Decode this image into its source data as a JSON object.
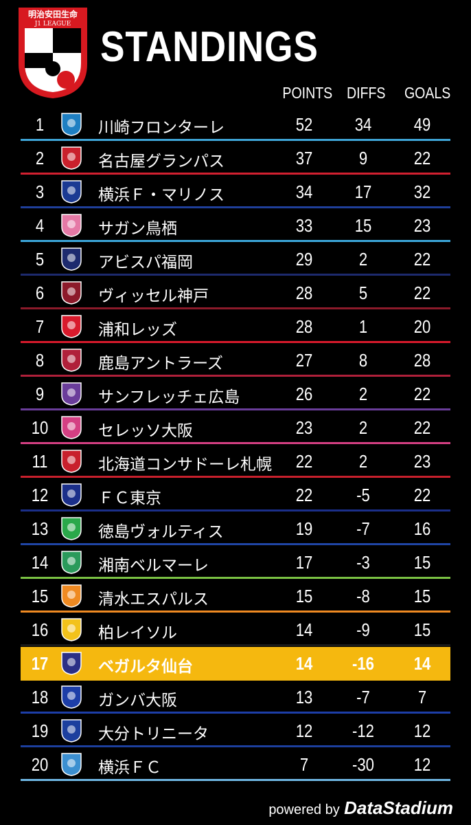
{
  "header": {
    "logo_sponsor": "明治安田生命",
    "logo_league": "J1 LEAGUE",
    "title": "STANDINGS",
    "col_points": "POINTS",
    "col_diffs": "DIFFS",
    "col_goals": "GOALS"
  },
  "table": {
    "rows": [
      {
        "rank": "1",
        "team": "川崎フロンターレ",
        "points": "52",
        "diffs": "34",
        "goals": "49",
        "color": "#3fa6d8",
        "crest": "#1e7fc2"
      },
      {
        "rank": "2",
        "team": "名古屋グランパス",
        "points": "37",
        "diffs": "9",
        "goals": "22",
        "color": "#d22030",
        "crest": "#c9202c"
      },
      {
        "rank": "3",
        "team": "横浜Ｆ・マリノス",
        "points": "34",
        "diffs": "17",
        "goals": "32",
        "color": "#1f3f9a",
        "crest": "#1b3a93"
      },
      {
        "rank": "4",
        "team": "サガン鳥栖",
        "points": "33",
        "diffs": "15",
        "goals": "23",
        "color": "#3ca7db",
        "crest": "#e579a6"
      },
      {
        "rank": "5",
        "team": "アビスパ福岡",
        "points": "29",
        "diffs": "2",
        "goals": "22",
        "color": "#1d2a6e",
        "crest": "#1d2a6e"
      },
      {
        "rank": "6",
        "team": "ヴィッセル神戸",
        "points": "28",
        "diffs": "5",
        "goals": "22",
        "color": "#8c1a2a",
        "crest": "#8c1a2a"
      },
      {
        "rank": "7",
        "team": "浦和レッズ",
        "points": "28",
        "diffs": "1",
        "goals": "20",
        "color": "#d81a2c",
        "crest": "#d81a2c"
      },
      {
        "rank": "8",
        "team": "鹿島アントラーズ",
        "points": "27",
        "diffs": "8",
        "goals": "28",
        "color": "#b0203a",
        "crest": "#b0203a"
      },
      {
        "rank": "9",
        "team": "サンフレッチェ広島",
        "points": "26",
        "diffs": "2",
        "goals": "22",
        "color": "#6a3d9a",
        "crest": "#6a3d9a"
      },
      {
        "rank": "10",
        "team": "セレッソ大阪",
        "points": "23",
        "diffs": "2",
        "goals": "22",
        "color": "#d43f83",
        "crest": "#d43f83"
      },
      {
        "rank": "11",
        "team": "北海道コンサドーレ札幌",
        "points": "22",
        "diffs": "2",
        "goals": "23",
        "color": "#c8202c",
        "crest": "#c8202c"
      },
      {
        "rank": "12",
        "team": "ＦＣ東京",
        "points": "22",
        "diffs": "-5",
        "goals": "22",
        "color": "#1b2f8a",
        "crest": "#1b2f8a"
      },
      {
        "rank": "13",
        "team": "徳島ヴォルティス",
        "points": "19",
        "diffs": "-7",
        "goals": "16",
        "color": "#1f45a5",
        "crest": "#2aa84a"
      },
      {
        "rank": "14",
        "team": "湘南ベルマーレ",
        "points": "17",
        "diffs": "-3",
        "goals": "15",
        "color": "#7ac143",
        "crest": "#2a9a5b"
      },
      {
        "rank": "15",
        "team": "清水エスパルス",
        "points": "15",
        "diffs": "-8",
        "goals": "15",
        "color": "#ef8a22",
        "crest": "#ef8a22"
      },
      {
        "rank": "16",
        "team": "柏レイソル",
        "points": "14",
        "diffs": "-9",
        "goals": "15",
        "color": "#1a1a1a",
        "crest": "#f3c21b"
      },
      {
        "rank": "17",
        "team": "ベガルタ仙台",
        "points": "14",
        "diffs": "-16",
        "goals": "14",
        "color": "#f5b80f",
        "crest": "#2b2f86"
      },
      {
        "rank": "18",
        "team": "ガンバ大阪",
        "points": "13",
        "diffs": "-7",
        "goals": "7",
        "color": "#1d3ea8",
        "crest": "#1d3ea8"
      },
      {
        "rank": "19",
        "team": "大分トリニータ",
        "points": "12",
        "diffs": "-12",
        "goals": "12",
        "color": "#1c3f9e",
        "crest": "#1c3f9e"
      },
      {
        "rank": "20",
        "team": "横浜ＦＣ",
        "points": "7",
        "diffs": "-30",
        "goals": "12",
        "color": "#6fb6e3",
        "crest": "#3c8fd0"
      }
    ],
    "highlight_rank": "17",
    "highlight_color": "#f5b80f"
  },
  "footer": {
    "powered": "powered by",
    "brand": "DataStadium"
  }
}
